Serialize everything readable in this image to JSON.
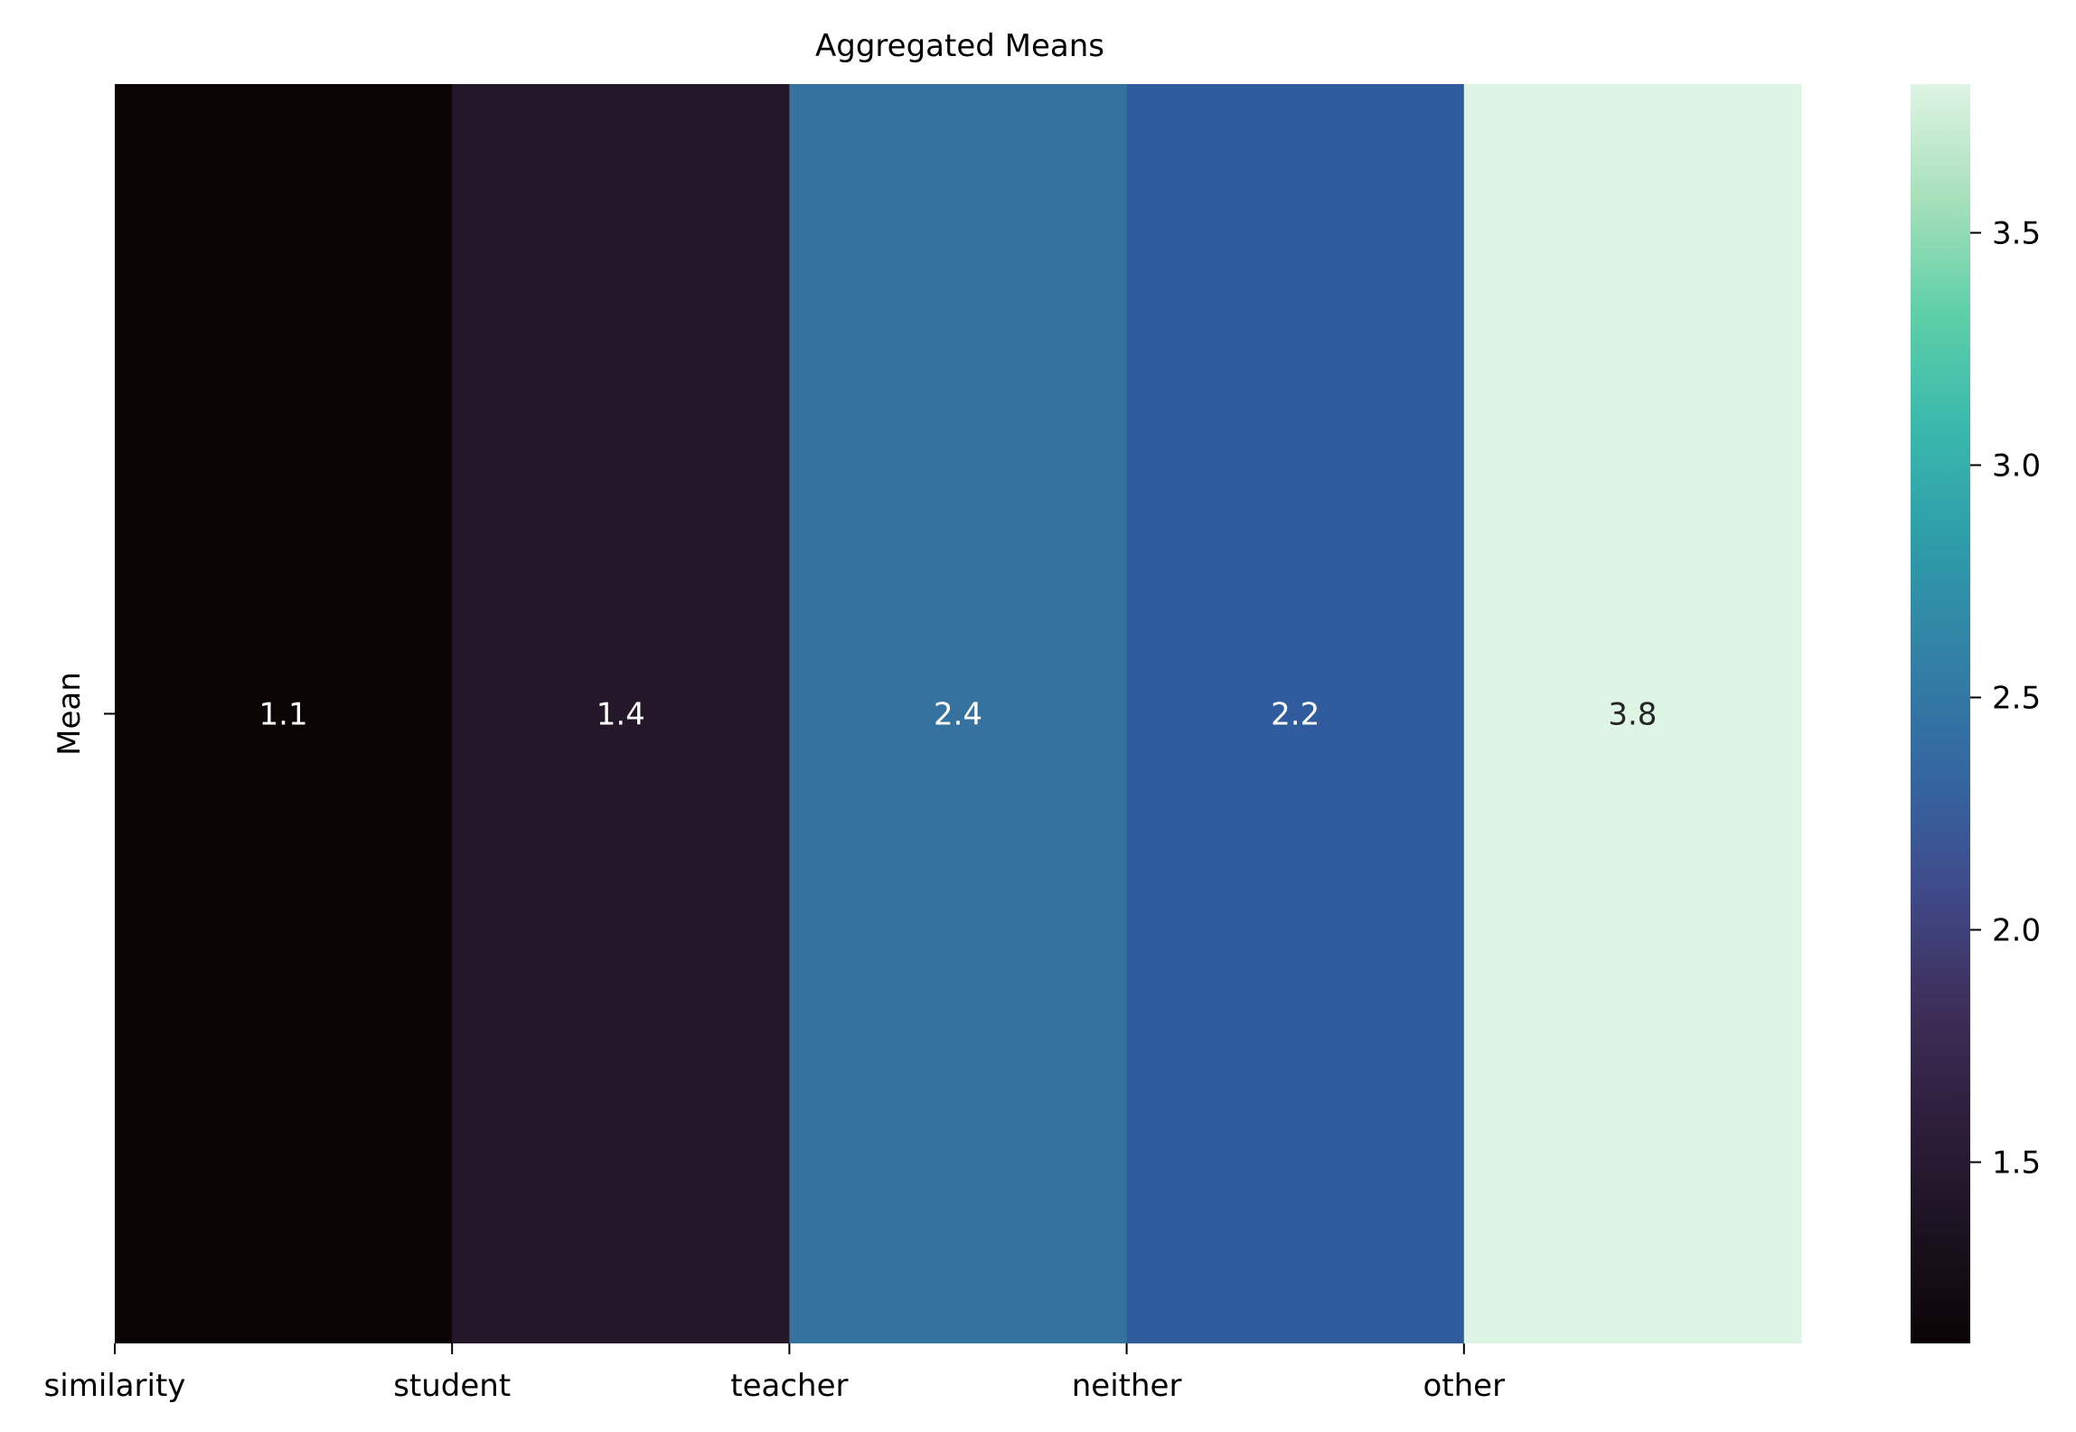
{
  "chart_data": {
    "type": "heatmap",
    "title": "Aggregated Means",
    "xlabel": "",
    "ylabel": "",
    "x": [
      "similarity",
      "student",
      "teacher",
      "neither",
      "other"
    ],
    "y": [
      "Mean"
    ],
    "values": [
      [
        1.1,
        1.4,
        2.4,
        2.2,
        3.8
      ]
    ],
    "value_labels": [
      "1.1",
      "1.4",
      "2.4",
      "2.2",
      "3.8"
    ],
    "cell_colors": [
      "#0b0405",
      "#25172a",
      "#3572a0",
      "#305c9e",
      "#def4e4"
    ],
    "label_colors": [
      "#ffffff",
      "#ffffff",
      "#ffffff",
      "#ffffff",
      "#262626"
    ],
    "colormap": "mako",
    "colorbar": {
      "range": [
        1.11,
        3.82
      ],
      "ticks": [
        1.5,
        2.0,
        2.5,
        3.0,
        3.5
      ],
      "tick_labels": [
        "1.5",
        "2.0",
        "2.5",
        "3.0",
        "3.5"
      ]
    },
    "grid": false,
    "legend": "colorbar-right"
  }
}
